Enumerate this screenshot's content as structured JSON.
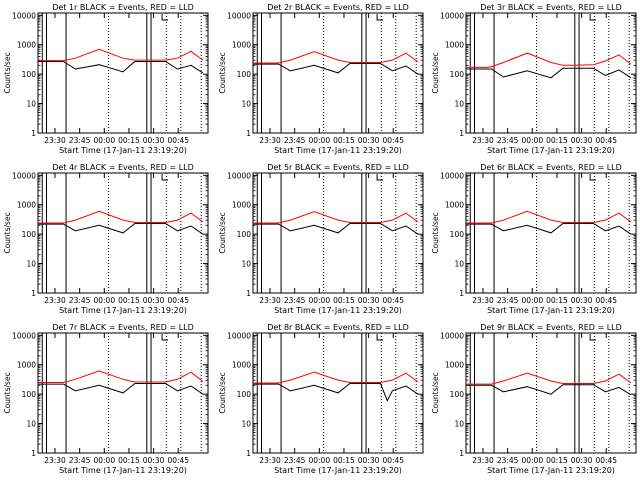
{
  "chart_data": [
    {
      "type": "line",
      "title": "Det 1r BLACK = Events, RED = LLD",
      "xlabel": "Start Time (17-Jan-11 23:19:20)",
      "ylabel": "Counts/sec",
      "yscale": "log",
      "ylim": [
        1,
        12000
      ],
      "y_ticks": [
        1,
        10,
        100,
        1000,
        10000
      ],
      "x_ticks": [
        "23:30",
        "23:45",
        "00:00",
        "00:15",
        "00:30",
        "00:45"
      ],
      "grid": false,
      "series": [
        {
          "name": "Events",
          "color": "#000000",
          "x": [
            0,
            12,
            15,
            22,
            36,
            50,
            57,
            62,
            75,
            82,
            90,
            97
          ],
          "y": [
            270,
            270,
            270,
            150,
            210,
            120,
            270,
            270,
            270,
            150,
            200,
            110
          ]
        },
        {
          "name": "LLD",
          "color": "#ff0000",
          "x": [
            0,
            12,
            15,
            22,
            36,
            50,
            57,
            62,
            75,
            82,
            90,
            97
          ],
          "y": [
            290,
            290,
            290,
            350,
            700,
            350,
            300,
            300,
            300,
            350,
            600,
            300
          ]
        }
      ]
    },
    {
      "type": "line",
      "title": "Det 2r BLACK = Events, RED = LLD",
      "xlabel": "Start Time (17-Jan-11 23:19:20)",
      "ylabel": "Counts/sec",
      "yscale": "log",
      "ylim": [
        1,
        12000
      ],
      "y_ticks": [
        1,
        10,
        100,
        1000,
        10000
      ],
      "x_ticks": [
        "23:30",
        "23:45",
        "00:00",
        "00:15",
        "00:30",
        "00:45"
      ],
      "grid": false,
      "series": [
        {
          "name": "Events",
          "color": "#000000",
          "x": [
            0,
            12,
            15,
            22,
            36,
            50,
            57,
            62,
            75,
            82,
            90,
            97
          ],
          "y": [
            220,
            220,
            220,
            130,
            200,
            110,
            230,
            230,
            230,
            130,
            190,
            100
          ]
        },
        {
          "name": "LLD",
          "color": "#ff0000",
          "x": [
            0,
            12,
            15,
            22,
            36,
            50,
            57,
            62,
            75,
            82,
            90,
            97
          ],
          "y": [
            240,
            240,
            240,
            300,
            580,
            300,
            250,
            250,
            250,
            300,
            520,
            260
          ]
        }
      ]
    },
    {
      "type": "line",
      "title": "Det 3r BLACK = Events, RED = LLD",
      "xlabel": "Start Time (17-Jan-11 23:19:20)",
      "ylabel": "Counts/sec",
      "yscale": "log",
      "ylim": [
        1,
        12000
      ],
      "y_ticks": [
        1,
        10,
        100,
        1000,
        10000
      ],
      "x_ticks": [
        "23:30",
        "23:45",
        "00:00",
        "00:15",
        "00:30",
        "00:45"
      ],
      "grid": false,
      "series": [
        {
          "name": "Events",
          "color": "#000000",
          "x": [
            0,
            12,
            15,
            22,
            36,
            50,
            57,
            62,
            75,
            82,
            90,
            97
          ],
          "y": [
            150,
            150,
            150,
            80,
            130,
            75,
            160,
            160,
            160,
            90,
            140,
            75
          ]
        },
        {
          "name": "LLD",
          "color": "#ff0000",
          "x": [
            0,
            12,
            15,
            22,
            36,
            50,
            57,
            62,
            75,
            82,
            90,
            97
          ],
          "y": [
            170,
            170,
            180,
            250,
            520,
            250,
            200,
            200,
            210,
            280,
            450,
            220
          ]
        }
      ]
    },
    {
      "type": "line",
      "title": "Det 4r BLACK = Events, RED = LLD",
      "xlabel": "Start Time (17-Jan-11 23:19:20)",
      "ylabel": "Counts/sec",
      "yscale": "log",
      "ylim": [
        1,
        12000
      ],
      "y_ticks": [
        1,
        10,
        100,
        1000,
        10000
      ],
      "x_ticks": [
        "23:30",
        "23:45",
        "00:00",
        "00:15",
        "00:30",
        "00:45"
      ],
      "grid": false,
      "series": [
        {
          "name": "Events",
          "color": "#000000",
          "x": [
            0,
            12,
            15,
            22,
            36,
            50,
            57,
            62,
            75,
            82,
            90,
            97
          ],
          "y": [
            220,
            220,
            220,
            130,
            200,
            110,
            230,
            230,
            230,
            130,
            190,
            100
          ]
        },
        {
          "name": "LLD",
          "color": "#ff0000",
          "x": [
            0,
            12,
            15,
            22,
            36,
            50,
            57,
            62,
            75,
            82,
            90,
            97
          ],
          "y": [
            240,
            240,
            240,
            300,
            600,
            300,
            250,
            250,
            250,
            300,
            520,
            260
          ]
        }
      ]
    },
    {
      "type": "line",
      "title": "Det 5r BLACK = Events, RED = LLD",
      "xlabel": "Start Time (17-Jan-11 23:19:20)",
      "ylabel": "Counts/sec",
      "yscale": "log",
      "ylim": [
        1,
        12000
      ],
      "y_ticks": [
        1,
        10,
        100,
        1000,
        10000
      ],
      "x_ticks": [
        "23:30",
        "23:45",
        "00:00",
        "00:15",
        "00:30",
        "00:45"
      ],
      "grid": false,
      "series": [
        {
          "name": "Events",
          "color": "#000000",
          "x": [
            0,
            12,
            15,
            22,
            36,
            50,
            57,
            62,
            75,
            82,
            90,
            97
          ],
          "y": [
            220,
            220,
            220,
            130,
            200,
            110,
            230,
            230,
            230,
            130,
            190,
            100
          ]
        },
        {
          "name": "LLD",
          "color": "#ff0000",
          "x": [
            0,
            12,
            15,
            22,
            36,
            50,
            57,
            62,
            75,
            82,
            90,
            97
          ],
          "y": [
            240,
            240,
            240,
            300,
            580,
            300,
            250,
            250,
            250,
            300,
            520,
            260
          ]
        }
      ]
    },
    {
      "type": "line",
      "title": "Det 6r BLACK = Events, RED = LLD",
      "xlabel": "Start Time (17-Jan-11 23:19:20)",
      "ylabel": "Counts/sec",
      "yscale": "log",
      "ylim": [
        1,
        12000
      ],
      "y_ticks": [
        1,
        10,
        100,
        1000,
        10000
      ],
      "x_ticks": [
        "23:30",
        "23:45",
        "00:00",
        "00:15",
        "00:30",
        "00:45"
      ],
      "grid": false,
      "series": [
        {
          "name": "Events",
          "color": "#000000",
          "x": [
            0,
            12,
            15,
            22,
            36,
            50,
            57,
            62,
            75,
            82,
            90,
            97
          ],
          "y": [
            220,
            220,
            220,
            130,
            200,
            110,
            230,
            230,
            230,
            130,
            190,
            100
          ]
        },
        {
          "name": "LLD",
          "color": "#ff0000",
          "x": [
            0,
            12,
            15,
            22,
            36,
            50,
            57,
            62,
            75,
            82,
            90,
            97
          ],
          "y": [
            240,
            240,
            240,
            300,
            600,
            300,
            250,
            250,
            250,
            300,
            520,
            260
          ]
        }
      ]
    },
    {
      "type": "line",
      "title": "Det 7r BLACK = Events, RED = LLD",
      "xlabel": "Start Time (17-Jan-11 23:19:20)",
      "ylabel": "Counts/sec",
      "yscale": "log",
      "ylim": [
        1,
        12000
      ],
      "y_ticks": [
        1,
        10,
        100,
        1000,
        10000
      ],
      "x_ticks": [
        "23:30",
        "23:45",
        "00:00",
        "00:15",
        "00:30",
        "00:45"
      ],
      "grid": false,
      "series": [
        {
          "name": "Events",
          "color": "#000000",
          "x": [
            0,
            12,
            15,
            22,
            36,
            50,
            57,
            62,
            75,
            82,
            90,
            97
          ],
          "y": [
            220,
            220,
            220,
            130,
            200,
            110,
            230,
            230,
            230,
            130,
            190,
            100
          ]
        },
        {
          "name": "LLD",
          "color": "#ff0000",
          "x": [
            0,
            12,
            15,
            22,
            36,
            50,
            57,
            62,
            75,
            82,
            90,
            97
          ],
          "y": [
            250,
            250,
            250,
            320,
            620,
            320,
            260,
            260,
            260,
            320,
            560,
            270
          ]
        }
      ]
    },
    {
      "type": "line",
      "title": "Det 8r BLACK = Events, RED = LLD",
      "xlabel": "Start Time (17-Jan-11 23:19:20)",
      "ylabel": "Counts/sec",
      "yscale": "log",
      "ylim": [
        1,
        12000
      ],
      "y_ticks": [
        1,
        10,
        100,
        1000,
        10000
      ],
      "x_ticks": [
        "23:30",
        "23:45",
        "00:00",
        "00:15",
        "00:30",
        "00:45"
      ],
      "grid": false,
      "series": [
        {
          "name": "Events",
          "color": "#000000",
          "x": [
            0,
            12,
            15,
            22,
            36,
            50,
            57,
            62,
            75,
            79,
            82,
            90,
            97
          ],
          "y": [
            220,
            220,
            220,
            130,
            200,
            110,
            230,
            230,
            230,
            60,
            130,
            190,
            100
          ]
        },
        {
          "name": "LLD",
          "color": "#ff0000",
          "x": [
            0,
            12,
            15,
            22,
            36,
            50,
            57,
            62,
            75,
            82,
            90,
            97
          ],
          "y": [
            240,
            240,
            240,
            300,
            560,
            300,
            250,
            250,
            250,
            300,
            520,
            260
          ]
        }
      ]
    },
    {
      "type": "line",
      "title": "Det 9r BLACK = Events, RED = LLD",
      "xlabel": "Start Time (17-Jan-11 23:19:20)",
      "ylabel": "Counts/sec",
      "yscale": "log",
      "ylim": [
        1,
        12000
      ],
      "y_ticks": [
        1,
        10,
        100,
        1000,
        10000
      ],
      "x_ticks": [
        "23:30",
        "23:45",
        "00:00",
        "00:15",
        "00:30",
        "00:45"
      ],
      "grid": false,
      "series": [
        {
          "name": "Events",
          "color": "#000000",
          "x": [
            0,
            12,
            15,
            22,
            36,
            50,
            57,
            62,
            75,
            82,
            90,
            97
          ],
          "y": [
            200,
            200,
            200,
            120,
            180,
            100,
            210,
            210,
            210,
            120,
            170,
            95
          ]
        },
        {
          "name": "LLD",
          "color": "#ff0000",
          "x": [
            0,
            12,
            15,
            22,
            36,
            50,
            57,
            62,
            75,
            82,
            90,
            97
          ],
          "y": [
            220,
            220,
            220,
            280,
            520,
            280,
            230,
            230,
            230,
            280,
            480,
            240
          ]
        }
      ]
    }
  ]
}
